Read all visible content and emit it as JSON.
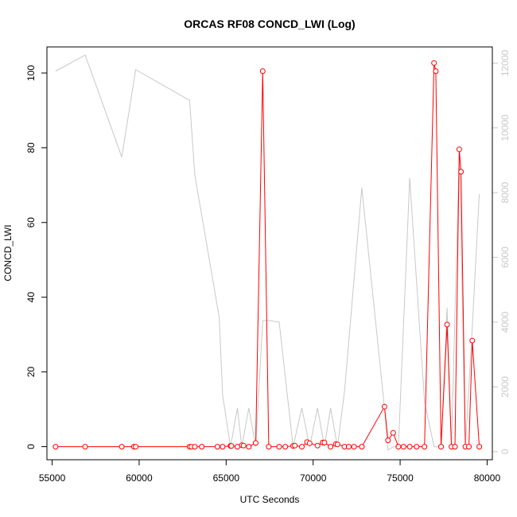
{
  "chart_data": {
    "type": "line",
    "title": "ORCAS RF08 CONCD_LWI (Log)",
    "xlabel": "UTC Seconds",
    "ylabel": "CONCD_LWI",
    "xlim": [
      54700,
      80300
    ],
    "ylim": [
      -3.5,
      107
    ],
    "y2lim": [
      -250,
      12500
    ],
    "x_ticks": [
      55000,
      60000,
      65000,
      70000,
      75000,
      80000
    ],
    "x_tick_labels": [
      "55000",
      "60000",
      "65000",
      "70000",
      "75000",
      "80000"
    ],
    "y_ticks": [
      0,
      20,
      40,
      60,
      80,
      100
    ],
    "y_tick_labels": [
      "0",
      "20",
      "40",
      "60",
      "80",
      "100"
    ],
    "y2_ticks": [
      0,
      2000,
      4000,
      6000,
      8000,
      10000,
      12000
    ],
    "y2_tick_labels": [
      "0",
      "2000",
      "4000",
      "6000",
      "8000",
      "10000",
      "12000"
    ],
    "grid": false,
    "colors": {
      "primary": "#ff0000",
      "secondary": "#c8c8c8",
      "axis": "#000000"
    },
    "series": [
      {
        "axis": "left",
        "style": "line+points",
        "color": "#ff0000",
        "x": [
          55200,
          56900,
          59000,
          59700,
          59800,
          62900,
          63000,
          63200,
          63600,
          64500,
          64800,
          65250,
          65300,
          65650,
          65900,
          66000,
          66300,
          66700,
          67100,
          67450,
          68050,
          68400,
          68850,
          68950,
          69350,
          69650,
          69800,
          70250,
          70550,
          70650,
          71000,
          71300,
          71400,
          71800,
          72050,
          72350,
          72800,
          74100,
          74300,
          74600,
          74900,
          75200,
          75550,
          75950,
          76400,
          76950,
          77050,
          77350,
          77700,
          77950,
          78150,
          78400,
          78500,
          78750,
          78950,
          79150,
          79550
        ],
        "y": [
          0,
          0,
          0,
          0,
          0,
          0,
          0,
          0,
          0,
          0,
          0,
          0.2,
          0.2,
          0,
          0.4,
          0.3,
          0,
          1.0,
          100.5,
          0,
          0,
          0,
          0.2,
          0.3,
          0,
          1.2,
          0.9,
          0.3,
          1.1,
          1.1,
          0,
          0.7,
          0.6,
          0,
          0,
          0,
          0,
          10.7,
          1.7,
          3.7,
          0,
          0,
          0,
          0,
          0,
          102.7,
          100.5,
          0,
          32.7,
          0,
          0,
          79.6,
          73.6,
          0,
          0,
          28.4,
          0
        ]
      },
      {
        "axis": "right",
        "style": "line",
        "color": "#c8c8c8",
        "x": [
          55200,
          56900,
          59000,
          59800,
          62900,
          63200,
          64600,
          64800,
          65250,
          65650,
          65900,
          66300,
          66700,
          67100,
          67450,
          68050,
          68850,
          69350,
          69800,
          70250,
          70650,
          71000,
          71400,
          71800,
          72800,
          74100,
          74300,
          74600,
          74900,
          75550,
          76400,
          76950,
          77350,
          77700,
          77950,
          78400,
          78750,
          79150,
          79550
        ],
        "y": [
          11750,
          12250,
          9100,
          11800,
          10850,
          8550,
          4150,
          1750,
          150,
          1350,
          150,
          1350,
          150,
          4050,
          4050,
          4000,
          150,
          1350,
          150,
          1350,
          150,
          1350,
          150,
          1850,
          8150,
          1350,
          50,
          150,
          150,
          8450,
          1550,
          150,
          150,
          4450,
          150,
          9250,
          150,
          3850,
          7950
        ]
      }
    ]
  }
}
